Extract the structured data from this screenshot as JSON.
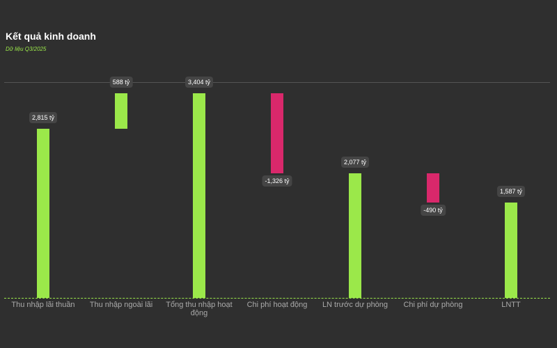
{
  "chart_data": {
    "type": "waterfall",
    "title": "Kết quả kinh doanh",
    "subtitle": "Dữ liệu Q3/2025",
    "categories": [
      "Thu nhập lãi thuần",
      "Thu nhập ngoài lãi",
      "Tổng thu nhập hoạt động",
      "Chi phí hoạt động",
      "LN trước dự phòng",
      "Chi phí dự phòng",
      "LNTT"
    ],
    "values": [
      2815,
      588,
      3404,
      -1326,
      2077,
      -490,
      1587
    ],
    "value_labels": [
      "2,815 tỷ",
      "588 tỷ",
      "3,404 tỷ",
      "-1,326 tỷ",
      "2,077 tỷ",
      "-490 tỷ",
      "1,587 tỷ"
    ],
    "totals": [
      false,
      false,
      true,
      false,
      true,
      false,
      true
    ],
    "positive_color": "#9be84a",
    "negative_color": "#d9286b",
    "ylim": [
      0,
      3590
    ]
  }
}
